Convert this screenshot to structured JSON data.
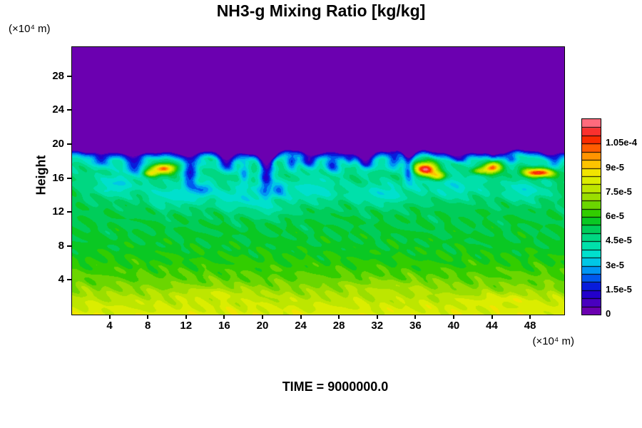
{
  "title": "NH3-g Mixing Ratio [kg/kg]",
  "time_label": "TIME = 9000000.0",
  "y_axis": {
    "label": "Height",
    "unit": "(×10⁴ m)"
  },
  "x_axis": {
    "unit": "(×10⁴ m)"
  },
  "colorbar": {
    "tick_labels": [
      "0",
      "1.5e-5",
      "3e-5",
      "4.5e-5",
      "6e-5",
      "7.5e-5",
      "9e-5",
      "1.05e-4"
    ],
    "tick_values": [
      0,
      1.5e-05,
      3e-05,
      4.5e-05,
      6e-05,
      7.5e-05,
      9e-05,
      0.000105
    ],
    "max": 0.00012,
    "segments": 24
  },
  "chart_data": {
    "type": "heatmap",
    "title": "NH3-g Mixing Ratio [kg/kg]",
    "quantity": "NH3-g mixing ratio",
    "units": "kg/kg",
    "xlabel": "(×10⁴ m)",
    "ylabel": "Height (×10⁴ m)",
    "x_range": [
      0,
      51.5
    ],
    "y_range": [
      0,
      31.5
    ],
    "x_ticks": [
      4,
      8,
      12,
      16,
      20,
      24,
      28,
      32,
      36,
      40,
      44,
      48
    ],
    "y_ticks": [
      4,
      8,
      12,
      16,
      20,
      24,
      28
    ],
    "value_range": [
      0,
      0.00012
    ],
    "legend_position": "right",
    "colormap_stops": [
      [
        0.0,
        "#7A00A8"
      ],
      [
        0.042,
        "#5C00B8"
      ],
      [
        0.083,
        "#3600C6"
      ],
      [
        0.125,
        "#1000D0"
      ],
      [
        0.167,
        "#0038E6"
      ],
      [
        0.208,
        "#0078F6"
      ],
      [
        0.25,
        "#00B2F0"
      ],
      [
        0.292,
        "#00DCDC"
      ],
      [
        0.333,
        "#00E4BE"
      ],
      [
        0.375,
        "#00DC96"
      ],
      [
        0.417,
        "#00D26E"
      ],
      [
        0.458,
        "#00C846"
      ],
      [
        0.5,
        "#14C800"
      ],
      [
        0.542,
        "#50D200"
      ],
      [
        0.583,
        "#86DA00"
      ],
      [
        0.625,
        "#AEE200"
      ],
      [
        0.667,
        "#CCEA00"
      ],
      [
        0.708,
        "#EAF000"
      ],
      [
        0.75,
        "#FAD800"
      ],
      [
        0.792,
        "#FFAE00"
      ],
      [
        0.833,
        "#FF7A00"
      ],
      [
        0.875,
        "#FF4000"
      ],
      [
        0.917,
        "#F51800"
      ],
      [
        0.958,
        "#FF4A5C"
      ],
      [
        1.0,
        "#FF8C9E"
      ]
    ],
    "field": {
      "description": "Zero (purple) above a wavy boundary-layer top near h=19e4 m; thin dark-blue interface layer; turbulent cyan/blue plumes between h=13-19; green mid-levels; yellow-green surface layer; localized red/orange maxima just below the interface.",
      "boundary": {
        "base": 19.1,
        "waves": [
          [
            0.22,
            0.55,
            1.0
          ],
          [
            0.14,
            1.3,
            3.0
          ],
          [
            0.09,
            2.6,
            0.5
          ]
        ],
        "notches": [
          {
            "x": 3.0,
            "d": 0.4,
            "w": 0.7
          },
          {
            "x": 12.4,
            "d": 0.8,
            "w": 0.9
          },
          {
            "x": 16.2,
            "d": 0.5,
            "w": 0.7
          },
          {
            "x": 20.3,
            "d": 1.0,
            "w": 0.8
          },
          {
            "x": 24.8,
            "d": 0.5,
            "w": 0.7
          },
          {
            "x": 30.8,
            "d": 0.5,
            "w": 0.7
          },
          {
            "x": 35.2,
            "d": 0.6,
            "w": 0.6
          },
          {
            "x": 44.0,
            "d": 0.3,
            "w": 0.5
          }
        ],
        "edge_ramp": 0.9
      },
      "profile": [
        [
          0,
          8.3e-05
        ],
        [
          1,
          8e-05
        ],
        [
          2,
          7.6e-05
        ],
        [
          3,
          7.1e-05
        ],
        [
          4,
          6.7e-05
        ],
        [
          5,
          6.4e-05
        ],
        [
          6,
          6.1e-05
        ],
        [
          8,
          5.7e-05
        ],
        [
          10,
          5.5e-05
        ],
        [
          13,
          5.3e-05
        ],
        [
          15,
          5.2e-05
        ],
        [
          16.5,
          5e-05
        ],
        [
          17.5,
          4.6e-05
        ],
        [
          18.3,
          4.2e-05
        ],
        [
          19.5,
          3.9e-05
        ],
        [
          31.5,
          3.9e-05
        ]
      ],
      "texture": [
        {
          "a": 3.5e-06,
          "k": [
            1.9,
            2.7,
            0.8,
            -1.3
          ]
        },
        {
          "a": 2.5e-06,
          "k": [
            0.6,
            1.2,
            2.4,
            2.0
          ]
        }
      ],
      "blobs": [
        {
          "x": 3.0,
          "h": 18.2,
          "rx": 0.9,
          "rh": 0.8,
          "a": -2.5e-05
        },
        {
          "x": 6.5,
          "h": 17.6,
          "rx": 1.1,
          "rh": 1.2,
          "a": -2.8e-05
        },
        {
          "x": 12.4,
          "h": 16.8,
          "rx": 0.8,
          "rh": 2.0,
          "a": -3.5e-05
        },
        {
          "x": 13.8,
          "h": 14.8,
          "rx": 0.9,
          "rh": 0.9,
          "a": -2.2e-05
        },
        {
          "x": 16.2,
          "h": 17.8,
          "rx": 0.9,
          "rh": 1.1,
          "a": -3e-05
        },
        {
          "x": 18.0,
          "h": 16.5,
          "rx": 0.5,
          "rh": 1.2,
          "a": -2e-05
        },
        {
          "x": 20.3,
          "h": 16.6,
          "rx": 0.7,
          "rh": 2.4,
          "a": -3.8e-05
        },
        {
          "x": 21.6,
          "h": 14.7,
          "rx": 0.7,
          "rh": 0.8,
          "a": -2e-05
        },
        {
          "x": 23.0,
          "h": 17.9,
          "rx": 0.6,
          "rh": 0.9,
          "a": -2.5e-05
        },
        {
          "x": 24.8,
          "h": 18.1,
          "rx": 0.8,
          "rh": 0.9,
          "a": -2.8e-05
        },
        {
          "x": 27.2,
          "h": 17.6,
          "rx": 0.8,
          "rh": 1.1,
          "a": -2.6e-05
        },
        {
          "x": 29.0,
          "h": 18.3,
          "rx": 0.5,
          "rh": 0.7,
          "a": -2e-05
        },
        {
          "x": 30.8,
          "h": 17.9,
          "rx": 0.8,
          "rh": 1.0,
          "a": -2.8e-05
        },
        {
          "x": 33.6,
          "h": 18.0,
          "rx": 0.7,
          "rh": 1.0,
          "a": -2.5e-05
        },
        {
          "x": 35.2,
          "h": 17.0,
          "rx": 0.5,
          "rh": 1.5,
          "a": -2.5e-05
        },
        {
          "x": 40.5,
          "h": 18.4,
          "rx": 0.7,
          "rh": 0.6,
          "a": -2e-05
        },
        {
          "x": 46.0,
          "h": 18.3,
          "rx": 0.6,
          "rh": 0.6,
          "a": -1.8e-05
        },
        {
          "x": 50.5,
          "h": 18.0,
          "rx": 0.7,
          "rh": 0.8,
          "a": -2.2e-05
        },
        {
          "x": 4.5,
          "h": 15.2,
          "rx": 2.5,
          "rh": 1.4,
          "a": -1.6e-05
        },
        {
          "x": 10.5,
          "h": 14.0,
          "rx": 2.8,
          "rh": 1.6,
          "a": -1.5e-05
        },
        {
          "x": 17.5,
          "h": 13.8,
          "rx": 3.2,
          "rh": 1.7,
          "a": -1.6e-05
        },
        {
          "x": 25.0,
          "h": 14.6,
          "rx": 3.5,
          "rh": 1.6,
          "a": -1.5e-05
        },
        {
          "x": 32.5,
          "h": 14.2,
          "rx": 3.0,
          "rh": 1.5,
          "a": -1.5e-05
        },
        {
          "x": 40.0,
          "h": 15.0,
          "rx": 3.5,
          "rh": 1.6,
          "a": -1.4e-05
        },
        {
          "x": 47.5,
          "h": 14.6,
          "rx": 2.6,
          "rh": 1.4,
          "a": -1.5e-05
        },
        {
          "x": 21.0,
          "h": 12.2,
          "rx": 2.0,
          "rh": 1.0,
          "a": -8e-06
        },
        {
          "x": 36.5,
          "h": 16.3,
          "rx": 1.5,
          "rh": 1.0,
          "a": -1.2e-05
        },
        {
          "x": 9.6,
          "h": 17.2,
          "rx": 1.3,
          "rh": 0.55,
          "a": 5.5e-05
        },
        {
          "x": 8.2,
          "h": 16.6,
          "rx": 0.8,
          "rh": 0.4,
          "a": 3e-05
        },
        {
          "x": 37.0,
          "h": 17.1,
          "rx": 1.2,
          "rh": 0.85,
          "a": 7.5e-05
        },
        {
          "x": 38.3,
          "h": 16.3,
          "rx": 0.8,
          "rh": 0.5,
          "a": 3.5e-05
        },
        {
          "x": 44.0,
          "h": 17.3,
          "rx": 0.9,
          "rh": 0.6,
          "a": 6e-05
        },
        {
          "x": 48.8,
          "h": 16.7,
          "rx": 1.5,
          "rh": 0.5,
          "a": 6.5e-05
        },
        {
          "x": 42.5,
          "h": 16.9,
          "rx": 0.8,
          "rh": 0.4,
          "a": 2.5e-05
        },
        {
          "x": 15.0,
          "h": 2.5,
          "rx": 4.0,
          "rh": 0.8,
          "a": 6e-06
        },
        {
          "x": 33.0,
          "h": 3.2,
          "rx": 5.0,
          "rh": 0.9,
          "a": 5e-06
        },
        {
          "x": 45.0,
          "h": 1.8,
          "rx": 4.0,
          "rh": 0.7,
          "a": 6e-06
        }
      ]
    }
  }
}
